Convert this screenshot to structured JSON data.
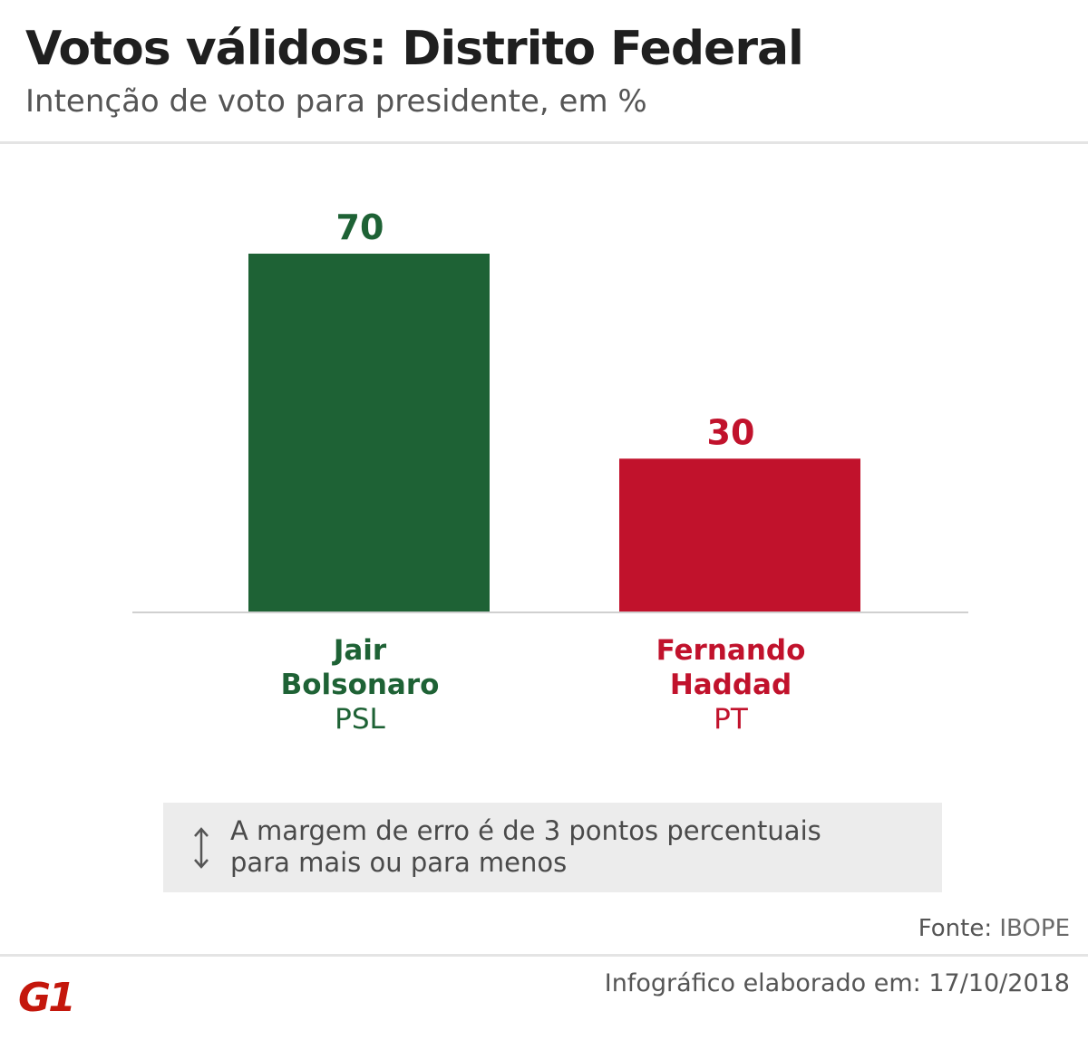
{
  "header": {
    "title": "Votos válidos: Distrito Federal",
    "subtitle": "Intenção de voto para presidente, em %"
  },
  "chart_data": {
    "type": "bar",
    "title": "Votos válidos: Distrito Federal",
    "subtitle": "Intenção de voto para presidente, em %",
    "categories": [
      "Jair Bolsonaro",
      "Fernando Haddad"
    ],
    "values": [
      70,
      30
    ],
    "bars": [
      {
        "name_lines": [
          "Jair",
          "Bolsonaro"
        ],
        "party": "PSL",
        "value": 70,
        "color": "#1e6235"
      },
      {
        "name_lines": [
          "Fernando",
          "Haddad"
        ],
        "party": "PT",
        "value": 30,
        "color": "#c1122c"
      }
    ],
    "xlabel": "",
    "ylabel": "",
    "ylim": [
      0,
      70
    ],
    "grid": false,
    "legend": "none"
  },
  "note": {
    "icon": "up-down-arrow-icon",
    "lines": [
      "A margem de erro é de 3 pontos percentuais",
      "para mais ou para menos"
    ]
  },
  "source": {
    "label": "Fonte:",
    "value": "IBOPE"
  },
  "footer": {
    "logo": "G1",
    "logo_color": "#c4170c",
    "text": "Infográfico elaborado em: 17/10/2018"
  }
}
